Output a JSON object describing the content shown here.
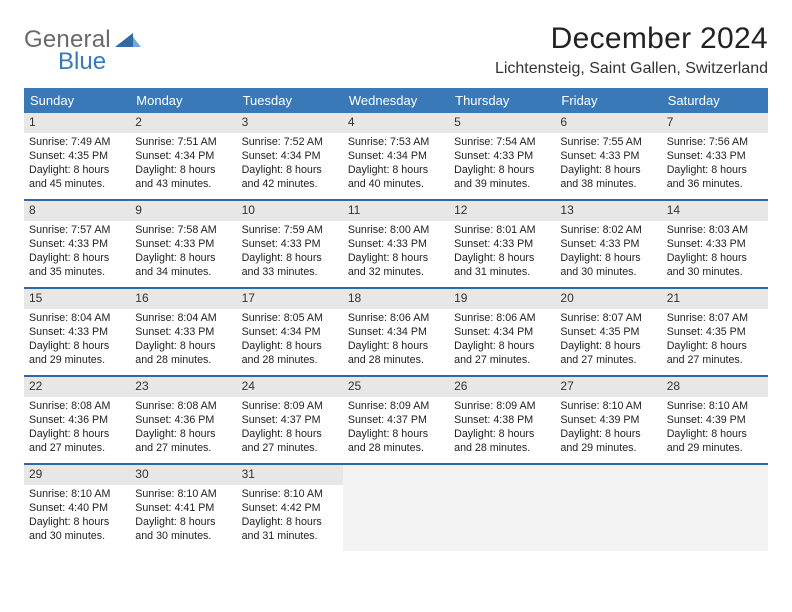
{
  "logo": {
    "text1": "General",
    "text2": "Blue"
  },
  "title": "December 2024",
  "location": "Lichtensteig, Saint Gallen, Switzerland",
  "colors": {
    "header_bg": "#3a79b7",
    "header_fg": "#ffffff",
    "week_divider": "#2f6aa5",
    "daynum_band_bg": "#e7e7e7",
    "empty_bg": "#f3f3f3",
    "logo_grey": "#6a6a6a",
    "logo_blue": "#3a79b7"
  },
  "typography": {
    "title_fontsize": 30,
    "location_fontsize": 16,
    "dow_fontsize": 13,
    "daynum_fontsize": 12,
    "body_fontsize": 10.7
  },
  "days_of_week": [
    "Sunday",
    "Monday",
    "Tuesday",
    "Wednesday",
    "Thursday",
    "Friday",
    "Saturday"
  ],
  "weeks": [
    [
      {
        "n": "1",
        "sunrise": "Sunrise: 7:49 AM",
        "sunset": "Sunset: 4:35 PM",
        "daylight": "Daylight: 8 hours and 45 minutes."
      },
      {
        "n": "2",
        "sunrise": "Sunrise: 7:51 AM",
        "sunset": "Sunset: 4:34 PM",
        "daylight": "Daylight: 8 hours and 43 minutes."
      },
      {
        "n": "3",
        "sunrise": "Sunrise: 7:52 AM",
        "sunset": "Sunset: 4:34 PM",
        "daylight": "Daylight: 8 hours and 42 minutes."
      },
      {
        "n": "4",
        "sunrise": "Sunrise: 7:53 AM",
        "sunset": "Sunset: 4:34 PM",
        "daylight": "Daylight: 8 hours and 40 minutes."
      },
      {
        "n": "5",
        "sunrise": "Sunrise: 7:54 AM",
        "sunset": "Sunset: 4:33 PM",
        "daylight": "Daylight: 8 hours and 39 minutes."
      },
      {
        "n": "6",
        "sunrise": "Sunrise: 7:55 AM",
        "sunset": "Sunset: 4:33 PM",
        "daylight": "Daylight: 8 hours and 38 minutes."
      },
      {
        "n": "7",
        "sunrise": "Sunrise: 7:56 AM",
        "sunset": "Sunset: 4:33 PM",
        "daylight": "Daylight: 8 hours and 36 minutes."
      }
    ],
    [
      {
        "n": "8",
        "sunrise": "Sunrise: 7:57 AM",
        "sunset": "Sunset: 4:33 PM",
        "daylight": "Daylight: 8 hours and 35 minutes."
      },
      {
        "n": "9",
        "sunrise": "Sunrise: 7:58 AM",
        "sunset": "Sunset: 4:33 PM",
        "daylight": "Daylight: 8 hours and 34 minutes."
      },
      {
        "n": "10",
        "sunrise": "Sunrise: 7:59 AM",
        "sunset": "Sunset: 4:33 PM",
        "daylight": "Daylight: 8 hours and 33 minutes."
      },
      {
        "n": "11",
        "sunrise": "Sunrise: 8:00 AM",
        "sunset": "Sunset: 4:33 PM",
        "daylight": "Daylight: 8 hours and 32 minutes."
      },
      {
        "n": "12",
        "sunrise": "Sunrise: 8:01 AM",
        "sunset": "Sunset: 4:33 PM",
        "daylight": "Daylight: 8 hours and 31 minutes."
      },
      {
        "n": "13",
        "sunrise": "Sunrise: 8:02 AM",
        "sunset": "Sunset: 4:33 PM",
        "daylight": "Daylight: 8 hours and 30 minutes."
      },
      {
        "n": "14",
        "sunrise": "Sunrise: 8:03 AM",
        "sunset": "Sunset: 4:33 PM",
        "daylight": "Daylight: 8 hours and 30 minutes."
      }
    ],
    [
      {
        "n": "15",
        "sunrise": "Sunrise: 8:04 AM",
        "sunset": "Sunset: 4:33 PM",
        "daylight": "Daylight: 8 hours and 29 minutes."
      },
      {
        "n": "16",
        "sunrise": "Sunrise: 8:04 AM",
        "sunset": "Sunset: 4:33 PM",
        "daylight": "Daylight: 8 hours and 28 minutes."
      },
      {
        "n": "17",
        "sunrise": "Sunrise: 8:05 AM",
        "sunset": "Sunset: 4:34 PM",
        "daylight": "Daylight: 8 hours and 28 minutes."
      },
      {
        "n": "18",
        "sunrise": "Sunrise: 8:06 AM",
        "sunset": "Sunset: 4:34 PM",
        "daylight": "Daylight: 8 hours and 28 minutes."
      },
      {
        "n": "19",
        "sunrise": "Sunrise: 8:06 AM",
        "sunset": "Sunset: 4:34 PM",
        "daylight": "Daylight: 8 hours and 27 minutes."
      },
      {
        "n": "20",
        "sunrise": "Sunrise: 8:07 AM",
        "sunset": "Sunset: 4:35 PM",
        "daylight": "Daylight: 8 hours and 27 minutes."
      },
      {
        "n": "21",
        "sunrise": "Sunrise: 8:07 AM",
        "sunset": "Sunset: 4:35 PM",
        "daylight": "Daylight: 8 hours and 27 minutes."
      }
    ],
    [
      {
        "n": "22",
        "sunrise": "Sunrise: 8:08 AM",
        "sunset": "Sunset: 4:36 PM",
        "daylight": "Daylight: 8 hours and 27 minutes."
      },
      {
        "n": "23",
        "sunrise": "Sunrise: 8:08 AM",
        "sunset": "Sunset: 4:36 PM",
        "daylight": "Daylight: 8 hours and 27 minutes."
      },
      {
        "n": "24",
        "sunrise": "Sunrise: 8:09 AM",
        "sunset": "Sunset: 4:37 PM",
        "daylight": "Daylight: 8 hours and 27 minutes."
      },
      {
        "n": "25",
        "sunrise": "Sunrise: 8:09 AM",
        "sunset": "Sunset: 4:37 PM",
        "daylight": "Daylight: 8 hours and 28 minutes."
      },
      {
        "n": "26",
        "sunrise": "Sunrise: 8:09 AM",
        "sunset": "Sunset: 4:38 PM",
        "daylight": "Daylight: 8 hours and 28 minutes."
      },
      {
        "n": "27",
        "sunrise": "Sunrise: 8:10 AM",
        "sunset": "Sunset: 4:39 PM",
        "daylight": "Daylight: 8 hours and 29 minutes."
      },
      {
        "n": "28",
        "sunrise": "Sunrise: 8:10 AM",
        "sunset": "Sunset: 4:39 PM",
        "daylight": "Daylight: 8 hours and 29 minutes."
      }
    ],
    [
      {
        "n": "29",
        "sunrise": "Sunrise: 8:10 AM",
        "sunset": "Sunset: 4:40 PM",
        "daylight": "Daylight: 8 hours and 30 minutes."
      },
      {
        "n": "30",
        "sunrise": "Sunrise: 8:10 AM",
        "sunset": "Sunset: 4:41 PM",
        "daylight": "Daylight: 8 hours and 30 minutes."
      },
      {
        "n": "31",
        "sunrise": "Sunrise: 8:10 AM",
        "sunset": "Sunset: 4:42 PM",
        "daylight": "Daylight: 8 hours and 31 minutes."
      },
      {
        "empty": true
      },
      {
        "empty": true
      },
      {
        "empty": true
      },
      {
        "empty": true
      }
    ]
  ]
}
